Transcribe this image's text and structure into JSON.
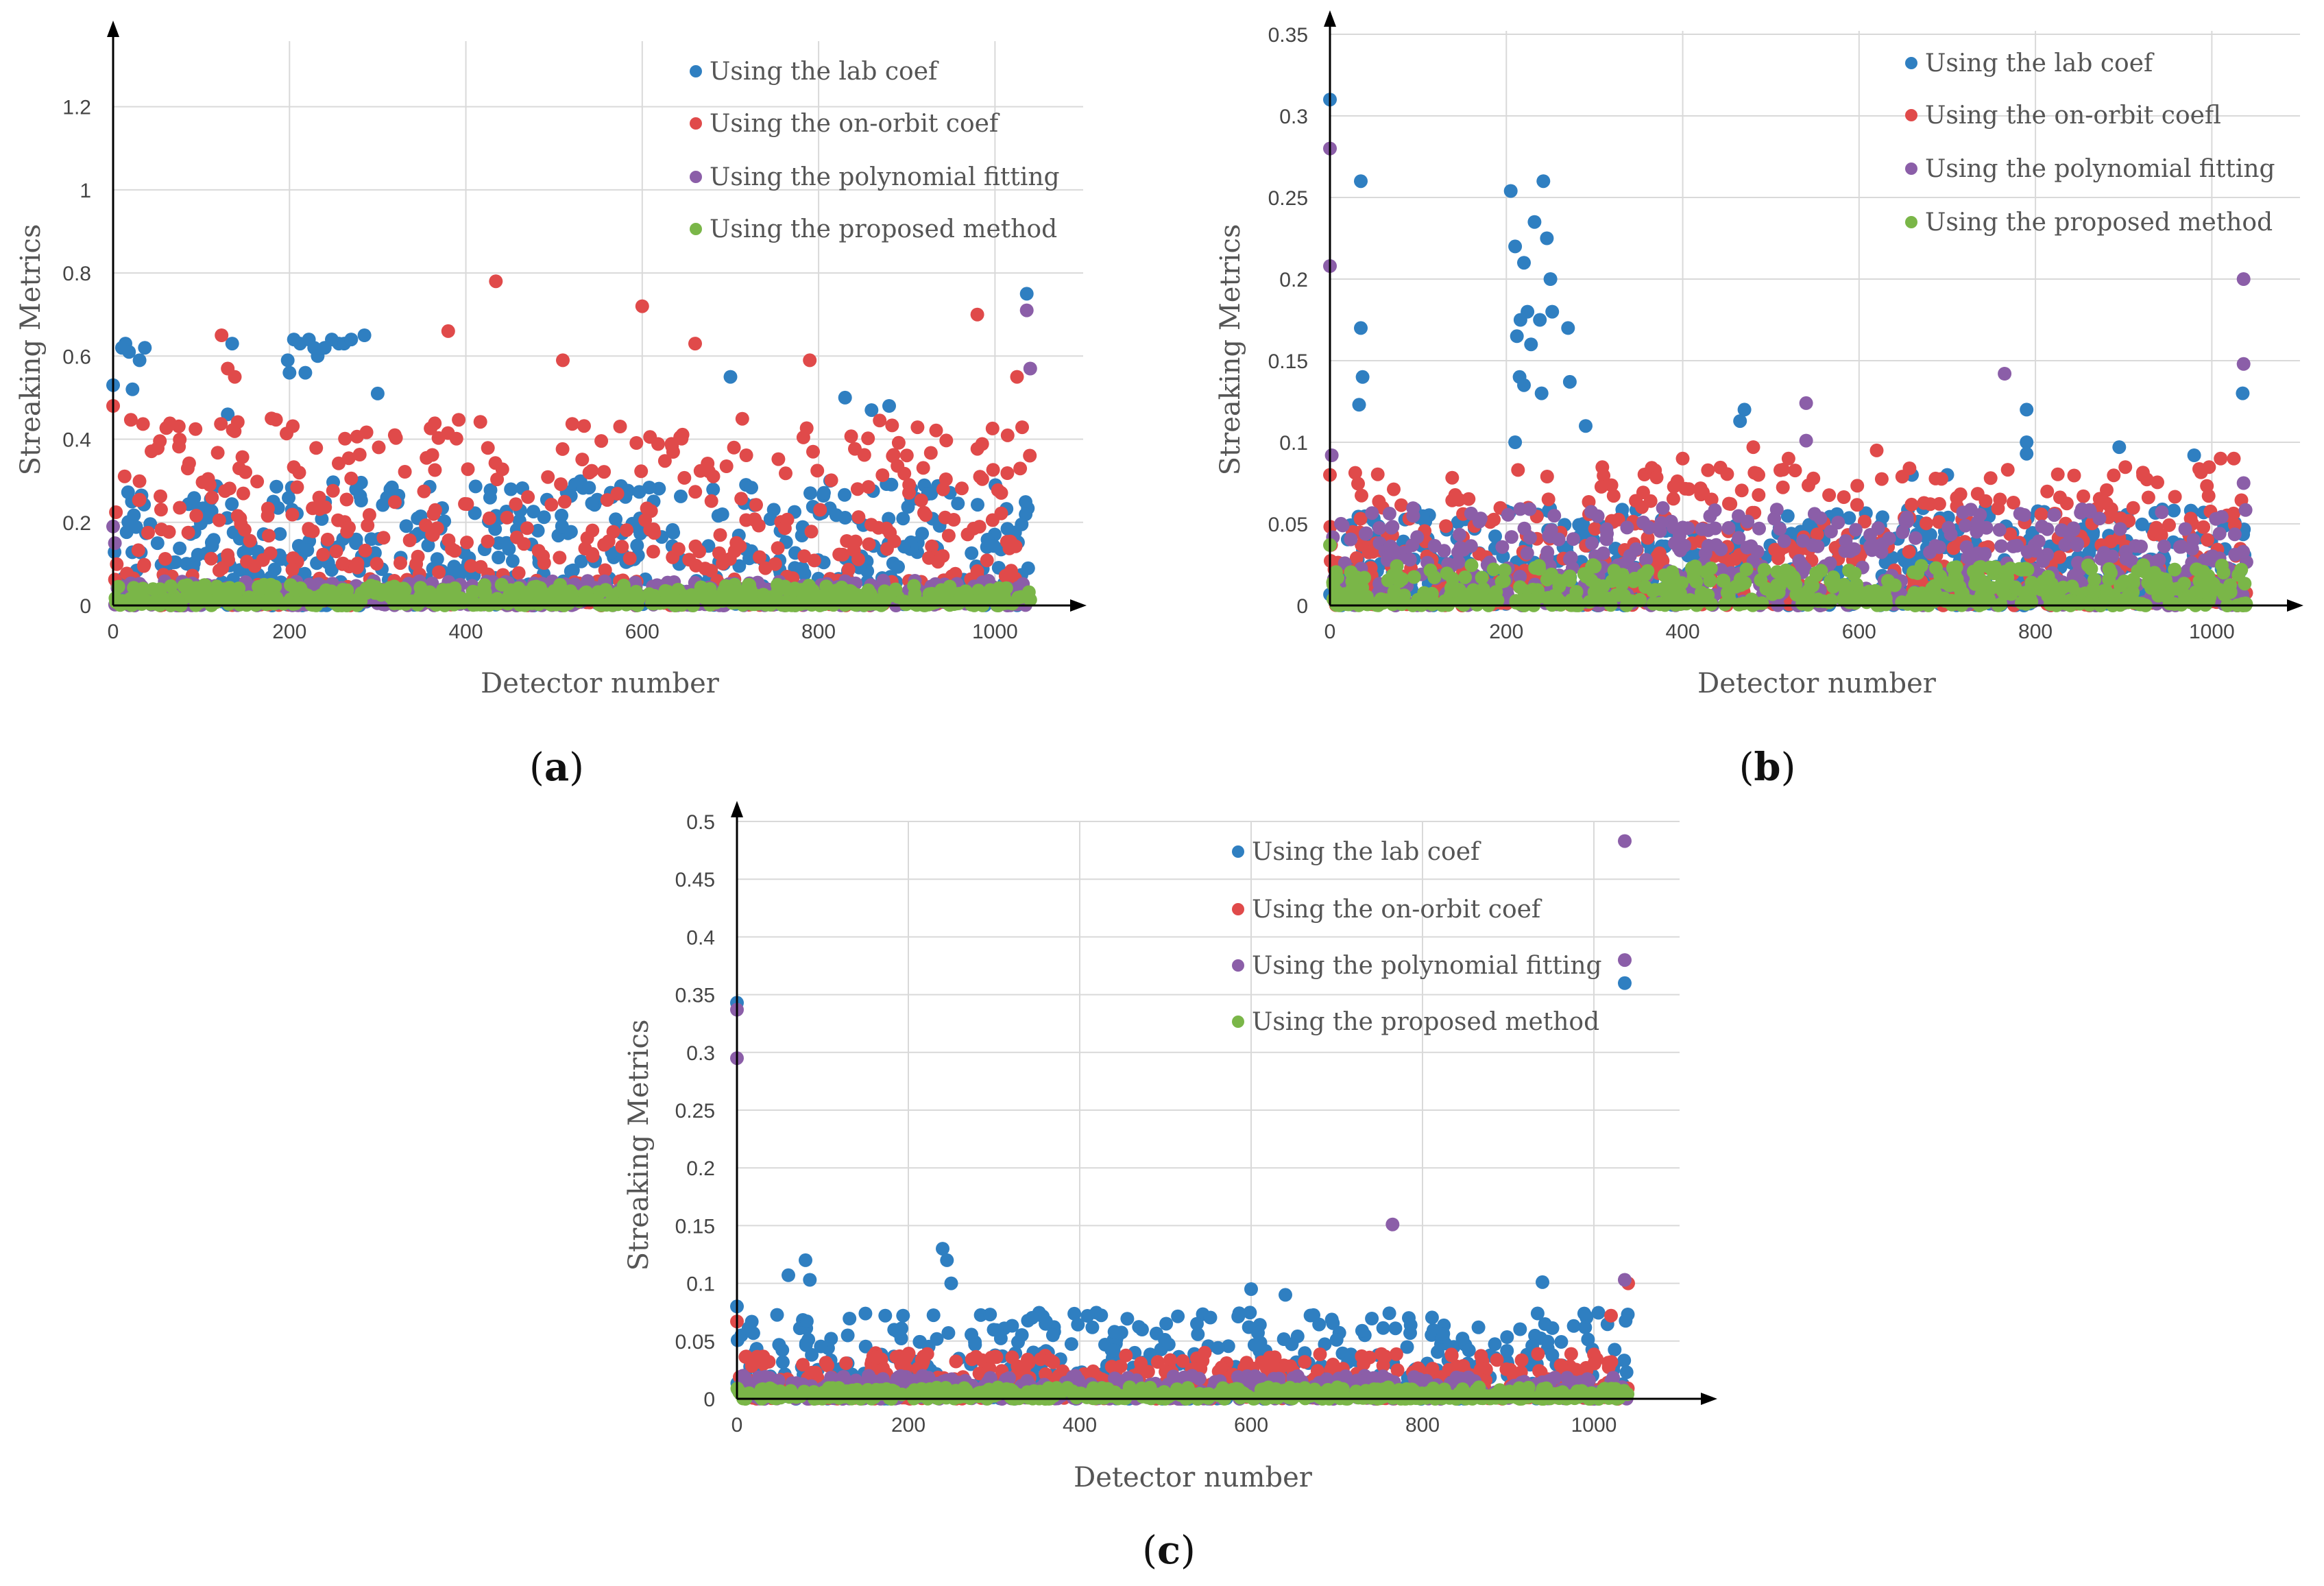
{
  "figure": {
    "colors": {
      "lab": "#2f7fc1",
      "onorbit": "#e04a4a",
      "poly": "#8b5ea8",
      "proposed": "#7ab648",
      "grid": "#d9d9d9",
      "axis": "#000000"
    }
  },
  "chart_data": [
    {
      "panel_label": "a",
      "type": "scatter",
      "xlabel": "Detector number",
      "ylabel": "Streaking  Metrics",
      "xlim": [
        0,
        1100
      ],
      "ylim": [
        0,
        1.3
      ],
      "xticks": [
        0,
        200,
        400,
        600,
        800,
        1000
      ],
      "xtick_labels": [
        "0",
        "200",
        "400",
        "600",
        "800",
        "1000"
      ],
      "yticks": [
        0,
        0.2,
        0.4,
        0.6,
        0.8,
        1,
        1.2
      ],
      "ytick_labels": [
        "0",
        "0.2",
        "0.4",
        "0.6",
        "0.8",
        "1",
        "1.2"
      ],
      "legend_position": "top-right",
      "series": [
        {
          "name": "Using the lab coef",
          "key": "lab",
          "band": [
            0.0,
            0.3
          ],
          "outliers": [
            [
              0,
              0.53
            ],
            [
              10,
              0.62
            ],
            [
              14,
              0.63
            ],
            [
              18,
              0.61
            ],
            [
              22,
              0.52
            ],
            [
              30,
              0.59
            ],
            [
              36,
              0.62
            ],
            [
              130,
              0.46
            ],
            [
              135,
              0.63
            ],
            [
              198,
              0.59
            ],
            [
              200,
              0.56
            ],
            [
              205,
              0.64
            ],
            [
              212,
              0.63
            ],
            [
              218,
              0.56
            ],
            [
              222,
              0.64
            ],
            [
              228,
              0.62
            ],
            [
              232,
              0.6
            ],
            [
              240,
              0.62
            ],
            [
              248,
              0.64
            ],
            [
              256,
              0.63
            ],
            [
              262,
              0.63
            ],
            [
              270,
              0.64
            ],
            [
              285,
              0.65
            ],
            [
              300,
              0.51
            ],
            [
              700,
              0.55
            ],
            [
              830,
              0.5
            ],
            [
              860,
              0.47
            ],
            [
              880,
              0.48
            ],
            [
              1036,
              0.75
            ]
          ]
        },
        {
          "name": "Using the on-orbit coef",
          "key": "onorbit",
          "band": [
            0.0,
            0.45
          ],
          "outliers": [
            [
              0,
              0.48
            ],
            [
              123,
              0.65
            ],
            [
              130,
              0.57
            ],
            [
              138,
              0.55
            ],
            [
              380,
              0.66
            ],
            [
              434,
              0.78
            ],
            [
              510,
              0.59
            ],
            [
              600,
              0.72
            ],
            [
              660,
              0.63
            ],
            [
              790,
              0.59
            ],
            [
              980,
              0.7
            ],
            [
              1025,
              0.55
            ]
          ]
        },
        {
          "name": "Using the polynomial fitting",
          "key": "poly",
          "band": [
            0.0,
            0.06
          ],
          "outliers": [
            [
              0,
              0.19
            ],
            [
              2,
              0.15
            ],
            [
              1036,
              0.71
            ],
            [
              1040,
              0.57
            ]
          ]
        },
        {
          "name": "Using the proposed method",
          "key": "proposed",
          "band": [
            0.0,
            0.05
          ],
          "outliers": []
        }
      ]
    },
    {
      "panel_label": "b",
      "type": "scatter",
      "xlabel": "Detector number",
      "ylabel": "Streaking  Metrics",
      "xlim": [
        0,
        1100
      ],
      "ylim": [
        0,
        0.35
      ],
      "xticks": [
        0,
        200,
        400,
        600,
        800,
        1000
      ],
      "xtick_labels": [
        "0",
        "200",
        "400",
        "600",
        "800",
        "1000"
      ],
      "yticks": [
        0,
        0.05,
        0.1,
        0.15,
        0.2,
        0.25,
        0.3,
        0.35
      ],
      "ytick_labels": [
        "0",
        "0.05",
        "0.1",
        "0.15",
        "0.2",
        "0.25",
        "0.3",
        "0.35"
      ],
      "legend_position": "top-right",
      "series": [
        {
          "name": "Using the lab coef",
          "key": "lab",
          "band": [
            0.0,
            0.06
          ],
          "outliers": [
            [
              0,
              0.31
            ],
            [
              35,
              0.26
            ],
            [
              35,
              0.17
            ],
            [
              37,
              0.14
            ],
            [
              33,
              0.123
            ],
            [
              205,
              0.254
            ],
            [
              210,
              0.22
            ],
            [
              212,
              0.165
            ],
            [
              216,
              0.175
            ],
            [
              220,
              0.21
            ],
            [
              224,
              0.18
            ],
            [
              228,
              0.16
            ],
            [
              232,
              0.235
            ],
            [
              238,
              0.175
            ],
            [
              242,
              0.26
            ],
            [
              246,
              0.225
            ],
            [
              250,
              0.2
            ],
            [
              252,
              0.18
            ],
            [
              210,
              0.1
            ],
            [
              215,
              0.14
            ],
            [
              220,
              0.135
            ],
            [
              240,
              0.13
            ],
            [
              270,
              0.17
            ],
            [
              272,
              0.137
            ],
            [
              290,
              0.11
            ],
            [
              470,
              0.12
            ],
            [
              465,
              0.113
            ],
            [
              660,
              0.08
            ],
            [
              700,
              0.08
            ],
            [
              790,
              0.12
            ],
            [
              790,
              0.1
            ],
            [
              790,
              0.093
            ],
            [
              895,
              0.097
            ],
            [
              980,
              0.092
            ],
            [
              1035,
              0.13
            ]
          ]
        },
        {
          "name": "Using the on-orbit coefl",
          "key": "onorbit",
          "band": [
            0.0,
            0.085
          ],
          "outliers": [
            [
              0,
              0.08
            ],
            [
              400,
              0.09
            ],
            [
              480,
              0.097
            ],
            [
              520,
              0.09
            ],
            [
              620,
              0.095
            ],
            [
              1010,
              0.09
            ],
            [
              1025,
              0.09
            ]
          ]
        },
        {
          "name": "Using the polynomial fitting",
          "key": "poly",
          "band": [
            0.0,
            0.06
          ],
          "outliers": [
            [
              0,
              0.28
            ],
            [
              0,
              0.208
            ],
            [
              2,
              0.092
            ],
            [
              540,
              0.124
            ],
            [
              540,
              0.101
            ],
            [
              765,
              0.142
            ],
            [
              1036,
              0.2
            ],
            [
              1036,
              0.148
            ],
            [
              1036,
              0.075
            ]
          ]
        },
        {
          "name": "Using the proposed method",
          "key": "proposed",
          "band": [
            0.0,
            0.025
          ],
          "outliers": [
            [
              0,
              0.037
            ]
          ]
        }
      ]
    },
    {
      "panel_label": "c",
      "type": "scatter",
      "xlabel": "Detector number",
      "ylabel": "Streaking  Metrics",
      "xlim": [
        0,
        1100
      ],
      "ylim": [
        0,
        0.5
      ],
      "xticks": [
        0,
        200,
        400,
        600,
        800,
        1000
      ],
      "xtick_labels": [
        "0",
        "200",
        "400",
        "600",
        "800",
        "1000"
      ],
      "yticks": [
        0,
        0.05,
        0.1,
        0.15,
        0.2,
        0.25,
        0.3,
        0.35,
        0.4,
        0.45,
        0.5
      ],
      "ytick_labels": [
        "0",
        "0.05",
        "0.1",
        "0.15",
        "0.2",
        "0.25",
        "0.3",
        "0.35",
        "0.4",
        "0.45",
        "0.5"
      ],
      "legend_position": "top-right",
      "series": [
        {
          "name": "Using the lab coef",
          "key": "lab",
          "band": [
            0.0,
            0.075
          ],
          "outliers": [
            [
              0,
              0.343
            ],
            [
              0,
              0.08
            ],
            [
              60,
              0.107
            ],
            [
              80,
              0.12
            ],
            [
              85,
              0.103
            ],
            [
              240,
              0.13
            ],
            [
              245,
              0.12
            ],
            [
              250,
              0.1
            ],
            [
              600,
              0.095
            ],
            [
              640,
              0.09
            ],
            [
              940,
              0.101
            ],
            [
              1036,
              0.36
            ]
          ]
        },
        {
          "name": "Using the on-orbit coef",
          "key": "onorbit",
          "band": [
            0.0,
            0.04
          ],
          "outliers": [
            [
              0,
              0.067
            ],
            [
              1020,
              0.072
            ],
            [
              1040,
              0.1
            ]
          ]
        },
        {
          "name": "Using the polynomial fitting",
          "key": "poly",
          "band": [
            0.0,
            0.02
          ],
          "outliers": [
            [
              0,
              0.337
            ],
            [
              0,
              0.295
            ],
            [
              765,
              0.151
            ],
            [
              1036,
              0.483
            ],
            [
              1036,
              0.38
            ],
            [
              1036,
              0.103
            ]
          ]
        },
        {
          "name": "Using the proposed method",
          "key": "proposed",
          "band": [
            0.0,
            0.01
          ],
          "outliers": []
        }
      ]
    }
  ]
}
